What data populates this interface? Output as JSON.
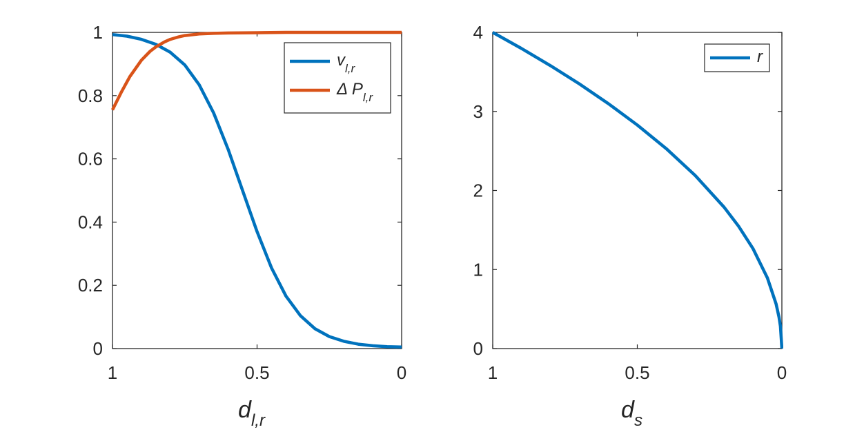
{
  "chart_data": [
    {
      "type": "line",
      "xlabel": {
        "main": "d",
        "sub": "l,r"
      },
      "ylabel": "",
      "xlim": [
        1,
        0
      ],
      "ylim": [
        0,
        1
      ],
      "x_ticks": [
        1,
        0.5,
        0
      ],
      "x_tick_labels": [
        "1",
        "0.5",
        "0"
      ],
      "y_ticks": [
        0,
        0.2,
        0.4,
        0.6,
        0.8,
        1
      ],
      "y_tick_labels": [
        "0",
        "0.2",
        "0.4",
        "0.6",
        "0.8",
        "1"
      ],
      "grid": false,
      "legend_position": "top-right",
      "series": [
        {
          "name": {
            "main": "v",
            "sub": "l,r"
          },
          "color": "#0072BD",
          "x": [
            1,
            0.95,
            0.9,
            0.85,
            0.8,
            0.75,
            0.7,
            0.65,
            0.6,
            0.55,
            0.5,
            0.45,
            0.4,
            0.35,
            0.3,
            0.25,
            0.2,
            0.15,
            0.1,
            0.05,
            0
          ],
          "y": [
            0.993,
            0.988,
            0.978,
            0.962,
            0.937,
            0.897,
            0.834,
            0.745,
            0.63,
            0.5,
            0.37,
            0.255,
            0.166,
            0.104,
            0.063,
            0.038,
            0.023,
            0.014,
            0.009,
            0.006,
            0.005
          ]
        },
        {
          "name": {
            "main": "Δ P",
            "sub": "l,r"
          },
          "color": "#D95319",
          "x": [
            1,
            0.97,
            0.94,
            0.9,
            0.87,
            0.85,
            0.82,
            0.8,
            0.77,
            0.75,
            0.7,
            0.65,
            0.6,
            0.5,
            0.4,
            0.3,
            0.2,
            0.1,
            0
          ],
          "y": [
            0.755,
            0.81,
            0.86,
            0.912,
            0.94,
            0.954,
            0.97,
            0.978,
            0.986,
            0.99,
            0.995,
            0.997,
            0.998,
            0.999,
            1.0,
            1.0,
            1.0,
            1.0,
            1.0
          ]
        }
      ]
    },
    {
      "type": "line",
      "xlabel": {
        "main": "d",
        "sub": "s"
      },
      "ylabel": "",
      "xlim": [
        1,
        0
      ],
      "ylim": [
        0,
        4
      ],
      "x_ticks": [
        1,
        0.5,
        0
      ],
      "x_tick_labels": [
        "1",
        "0.5",
        "0"
      ],
      "y_ticks": [
        0,
        1,
        2,
        3,
        4
      ],
      "y_tick_labels": [
        "0",
        "1",
        "2",
        "3",
        "4"
      ],
      "grid": false,
      "legend_position": "top-right",
      "series": [
        {
          "name": {
            "main": "r",
            "sub": ""
          },
          "color": "#0072BD",
          "x": [
            1,
            0.9,
            0.8,
            0.7,
            0.6,
            0.5,
            0.4,
            0.3,
            0.2,
            0.15,
            0.1,
            0.05,
            0.02,
            0.01,
            0.005,
            0
          ],
          "y": [
            4.0,
            3.795,
            3.578,
            3.347,
            3.098,
            2.828,
            2.53,
            2.191,
            1.789,
            1.549,
            1.265,
            0.894,
            0.566,
            0.4,
            0.283,
            0
          ]
        }
      ]
    }
  ]
}
